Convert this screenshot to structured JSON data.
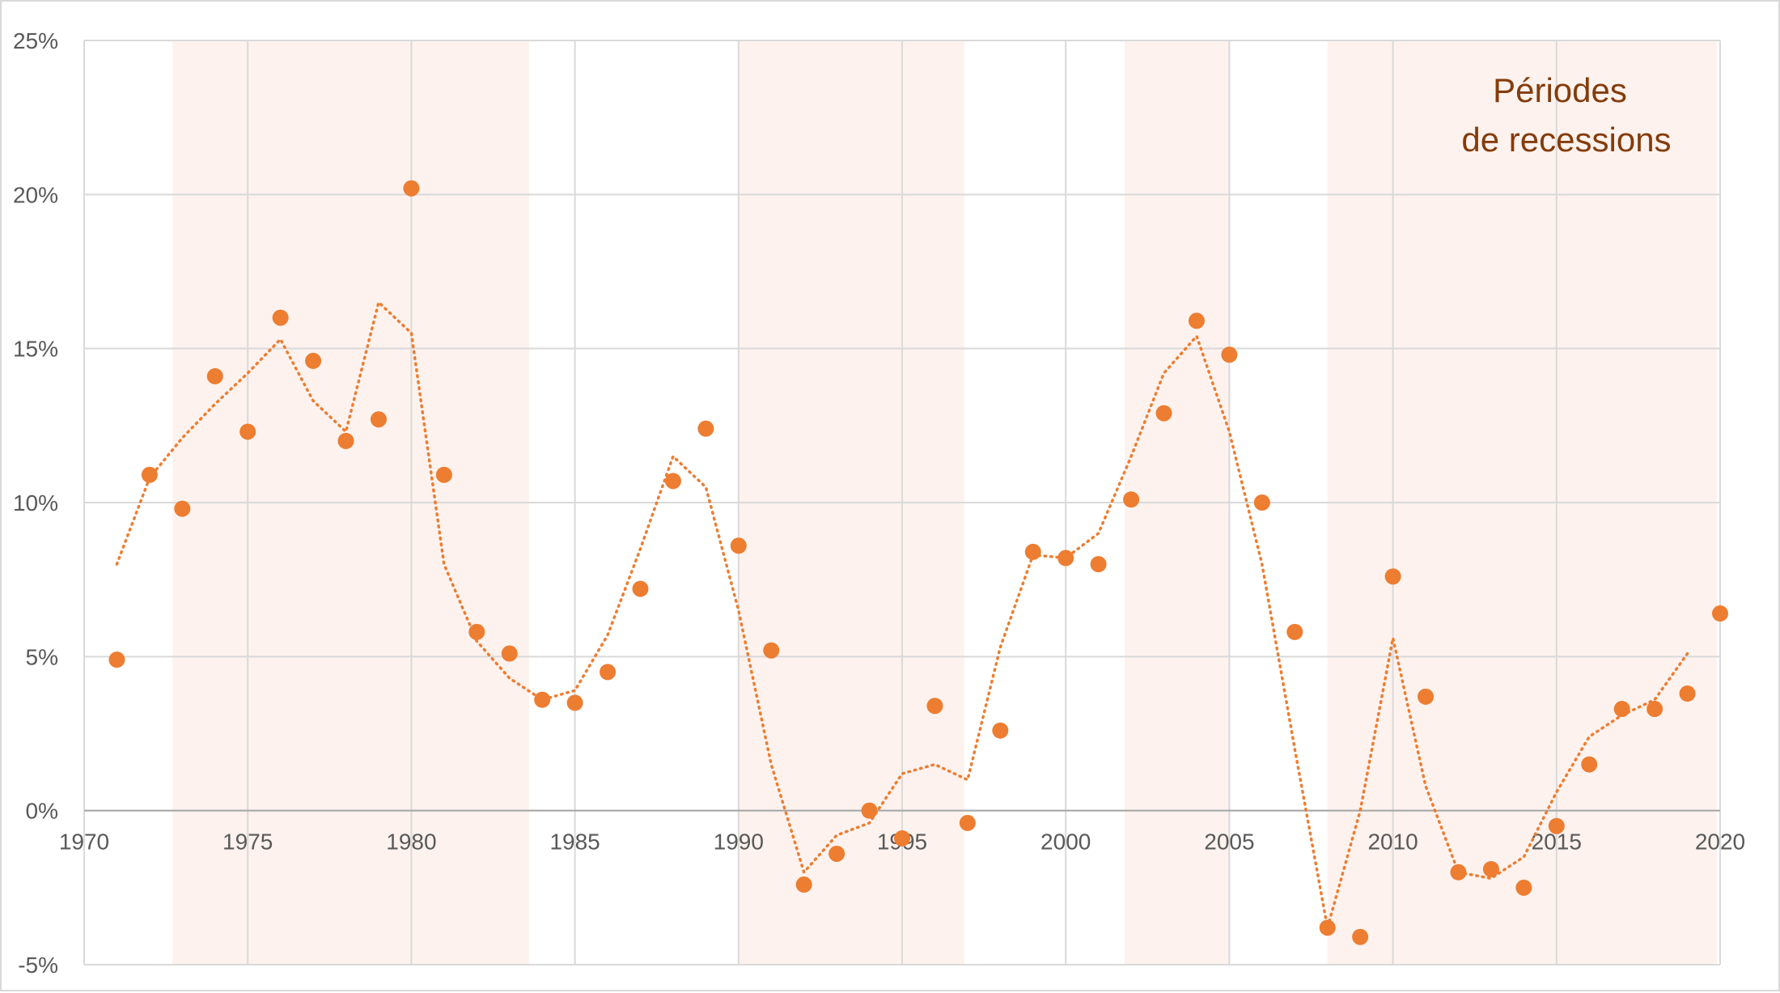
{
  "chart_data": {
    "type": "scatter",
    "title": "",
    "xlabel": "",
    "ylabel": "",
    "xlim": [
      1970,
      2020
    ],
    "ylim": [
      -5,
      25
    ],
    "x_ticks": [
      "1970",
      "1975",
      "1980",
      "1985",
      "1990",
      "1995",
      "2000",
      "2005",
      "2010",
      "2015",
      "2020"
    ],
    "y_ticks": [
      "-5%",
      "0%",
      "5%",
      "10%",
      "15%",
      "20%",
      "25%"
    ],
    "grid": true,
    "annotation": [
      "Périodes",
      "de recessions"
    ],
    "colors": {
      "points": "#ed7d31",
      "trend": "#ed7d31",
      "recession_band": "#fdf2ee",
      "grid": "#d9d9d9",
      "annotation": "#843c0c"
    },
    "recession_periods": [
      [
        1972.7,
        1983.6
      ],
      [
        1990.0,
        1996.9
      ],
      [
        2001.8,
        2005.0
      ],
      [
        2008.0,
        2019.9
      ]
    ],
    "series": [
      {
        "type": "scatter",
        "x": [
          1971,
          1972,
          1973,
          1974,
          1975,
          1976,
          1977,
          1978,
          1979,
          1980,
          1981,
          1982,
          1983,
          1984,
          1985,
          1986,
          1987,
          1988,
          1989,
          1990,
          1991,
          1992,
          1993,
          1994,
          1995,
          1996,
          1997,
          1998,
          1999,
          2000,
          2001,
          2002,
          2003,
          2004,
          2005,
          2006,
          2007,
          2008,
          2009,
          2010,
          2011,
          2012,
          2013,
          2014,
          2015,
          2016,
          2017,
          2018,
          2019,
          2020
        ],
        "y": [
          4.9,
          10.9,
          9.8,
          14.1,
          12.3,
          16.0,
          14.6,
          12.0,
          12.7,
          20.2,
          10.9,
          5.8,
          5.1,
          3.6,
          3.5,
          4.5,
          7.2,
          10.7,
          12.4,
          8.6,
          5.2,
          -2.4,
          -1.4,
          0.0,
          -0.9,
          3.4,
          -0.4,
          2.6,
          8.4,
          8.2,
          8.0,
          10.1,
          12.9,
          15.9,
          14.8,
          10.0,
          5.8,
          -3.8,
          -4.1,
          7.6,
          3.7,
          -2.0,
          -1.9,
          -2.5,
          -0.5,
          1.5,
          3.3,
          3.3,
          3.8,
          6.4
        ]
      },
      {
        "type": "line",
        "style": "dotted",
        "x": [
          1971,
          1972,
          1973,
          1974,
          1975,
          1976,
          1977,
          1978,
          1979,
          1980,
          1981,
          1982,
          1983,
          1984,
          1985,
          1986,
          1987,
          1988,
          1989,
          1990,
          1991,
          1992,
          1993,
          1994,
          1995,
          1996,
          1997,
          1998,
          1999,
          2000,
          2001,
          2002,
          2003,
          2004,
          2005,
          2006,
          2007,
          2008,
          2009,
          2010,
          2011,
          2012,
          2013,
          2014,
          2015,
          2016,
          2017,
          2018,
          2019
        ],
        "y": [
          8.0,
          10.8,
          12.1,
          13.2,
          14.2,
          15.3,
          13.3,
          12.3,
          16.5,
          15.5,
          8.0,
          5.5,
          4.3,
          3.6,
          3.9,
          5.7,
          8.5,
          11.5,
          10.5,
          6.5,
          1.5,
          -2.0,
          -0.8,
          -0.4,
          1.2,
          1.5,
          1.0,
          5.3,
          8.3,
          8.2,
          9.0,
          11.5,
          14.2,
          15.4,
          12.3,
          8.0,
          2.0,
          -3.8,
          0.0,
          5.6,
          0.8,
          -2.0,
          -2.2,
          -1.5,
          0.6,
          2.4,
          3.1,
          3.6,
          5.1
        ]
      }
    ]
  }
}
